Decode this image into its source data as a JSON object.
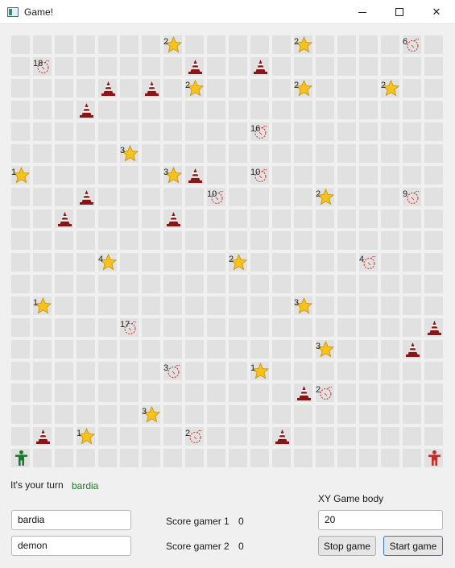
{
  "window": {
    "title": "Game!"
  },
  "board": {
    "size": 20,
    "cells": [
      {
        "r": 0,
        "c": 7,
        "t": "star",
        "n": "2"
      },
      {
        "r": 0,
        "c": 13,
        "t": "star",
        "n": "2"
      },
      {
        "r": 0,
        "c": 18,
        "t": "bomb",
        "n": "6"
      },
      {
        "r": 1,
        "c": 1,
        "t": "bomb",
        "n": "18"
      },
      {
        "r": 1,
        "c": 8,
        "t": "cone"
      },
      {
        "r": 1,
        "c": 11,
        "t": "cone"
      },
      {
        "r": 2,
        "c": 4,
        "t": "cone"
      },
      {
        "r": 2,
        "c": 6,
        "t": "cone"
      },
      {
        "r": 2,
        "c": 8,
        "t": "star",
        "n": "2"
      },
      {
        "r": 2,
        "c": 13,
        "t": "star",
        "n": "2"
      },
      {
        "r": 2,
        "c": 17,
        "t": "star",
        "n": "2"
      },
      {
        "r": 3,
        "c": 3,
        "t": "cone"
      },
      {
        "r": 4,
        "c": 11,
        "t": "bomb",
        "n": "16"
      },
      {
        "r": 5,
        "c": 5,
        "t": "star",
        "n": "3"
      },
      {
        "r": 6,
        "c": 0,
        "t": "star",
        "n": "1"
      },
      {
        "r": 6,
        "c": 7,
        "t": "star",
        "n": "3"
      },
      {
        "r": 6,
        "c": 8,
        "t": "cone"
      },
      {
        "r": 6,
        "c": 11,
        "t": "bomb",
        "n": "10"
      },
      {
        "r": 7,
        "c": 3,
        "t": "cone"
      },
      {
        "r": 7,
        "c": 9,
        "t": "bomb",
        "n": "10"
      },
      {
        "r": 7,
        "c": 14,
        "t": "star",
        "n": "2"
      },
      {
        "r": 7,
        "c": 18,
        "t": "bomb",
        "n": "9"
      },
      {
        "r": 8,
        "c": 2,
        "t": "cone"
      },
      {
        "r": 8,
        "c": 7,
        "t": "cone"
      },
      {
        "r": 10,
        "c": 4,
        "t": "star",
        "n": "4"
      },
      {
        "r": 10,
        "c": 10,
        "t": "star",
        "n": "2"
      },
      {
        "r": 10,
        "c": 16,
        "t": "bomb",
        "n": "4"
      },
      {
        "r": 12,
        "c": 1,
        "t": "star",
        "n": "1"
      },
      {
        "r": 12,
        "c": 13,
        "t": "star",
        "n": "3"
      },
      {
        "r": 13,
        "c": 5,
        "t": "bomb",
        "n": "17"
      },
      {
        "r": 13,
        "c": 19,
        "t": "cone"
      },
      {
        "r": 14,
        "c": 14,
        "t": "star",
        "n": "3"
      },
      {
        "r": 14,
        "c": 18,
        "t": "cone"
      },
      {
        "r": 15,
        "c": 7,
        "t": "bomb",
        "n": "3"
      },
      {
        "r": 15,
        "c": 11,
        "t": "star",
        "n": "1"
      },
      {
        "r": 16,
        "c": 13,
        "t": "cone"
      },
      {
        "r": 16,
        "c": 14,
        "t": "bomb",
        "n": "2"
      },
      {
        "r": 17,
        "c": 6,
        "t": "star",
        "n": "3"
      },
      {
        "r": 18,
        "c": 1,
        "t": "cone"
      },
      {
        "r": 18,
        "c": 3,
        "t": "star",
        "n": "1"
      },
      {
        "r": 18,
        "c": 8,
        "t": "bomb",
        "n": "2"
      },
      {
        "r": 18,
        "c": 12,
        "t": "cone"
      },
      {
        "r": 19,
        "c": 0,
        "t": "player-green"
      },
      {
        "r": 19,
        "c": 19,
        "t": "player-red"
      }
    ]
  },
  "turn": {
    "label": "It's your turn",
    "player": "bardia"
  },
  "players": {
    "gamer1": "bardia",
    "gamer2": "demon"
  },
  "scores": {
    "label1": "Score gamer 1",
    "value1": "0",
    "label2": "Score gamer 2",
    "value2": "0"
  },
  "size_setting": {
    "label": "XY Game body",
    "value": "20"
  },
  "buttons": {
    "stop": "Stop game",
    "start": "Start game"
  },
  "colors": {
    "cell": "#e1e1e1",
    "star": "#f6c21b",
    "cone": "#8b1414",
    "bomb": "#cc2b2b",
    "player1": "#1a7a2a",
    "player2": "#c42b2b"
  }
}
